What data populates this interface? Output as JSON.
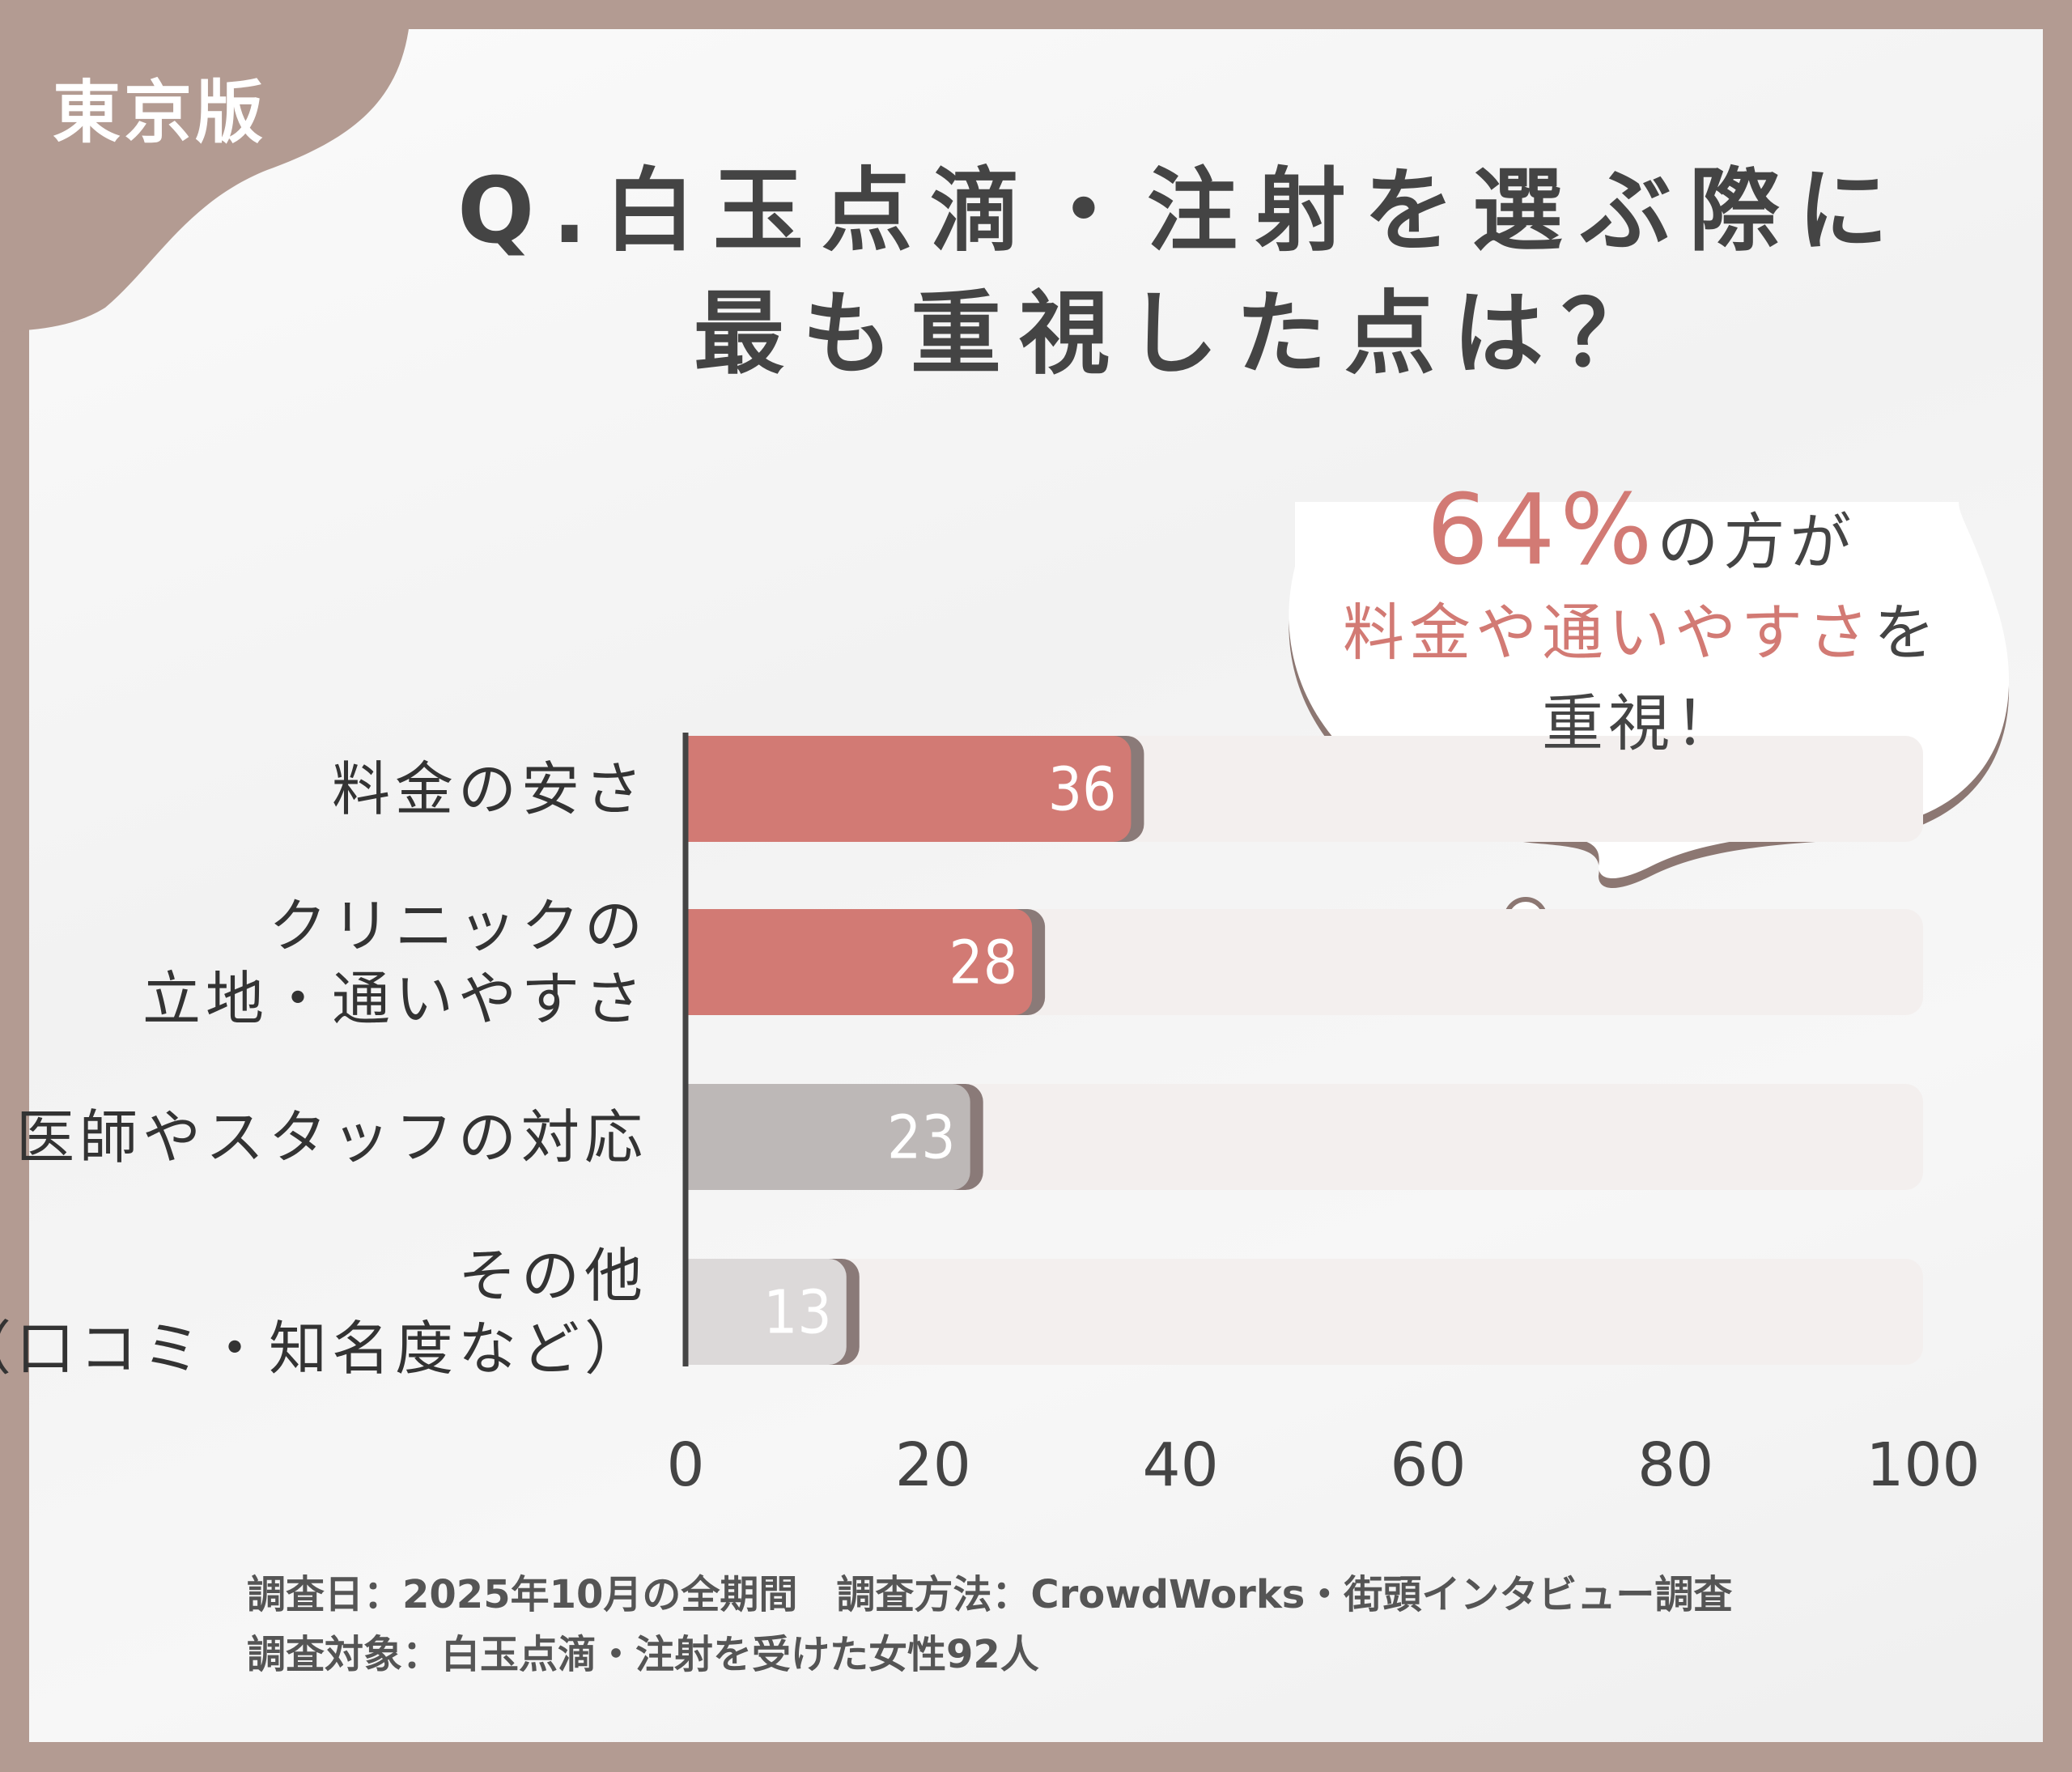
{
  "edition": "東京版",
  "title": {
    "line1": "Q.白玉点滴・注射を選ぶ際に",
    "line2": "最も重視した点は？"
  },
  "callout": {
    "percent": "64%",
    "after_percent": "の方が",
    "highlight": "料金や通いやすさ",
    "after_highlight": "を",
    "line3": "重視！"
  },
  "chart_data": {
    "type": "bar",
    "orientation": "horizontal",
    "categories": [
      [
        "料金の安さ"
      ],
      [
        "クリニックの",
        "立地・通いやすさ"
      ],
      [
        "医師やスタッフの対応"
      ],
      [
        "その他",
        "（口コミ・知名度など）"
      ]
    ],
    "values": [
      36,
      28,
      23,
      13
    ],
    "xlim": [
      0,
      100
    ],
    "xticks": [
      0,
      20,
      40,
      60,
      80,
      100
    ],
    "grid": false,
    "colors": [
      "#d27a74",
      "#d27a74",
      "#bdb8b7",
      "#dcd9d9"
    ],
    "track_color": "#f3efee"
  },
  "footer": {
    "line1": "調査日：2025年10月の全期間　調査方法：CrowdWorks・街頭インタビュー調査",
    "line2": "調査対象：白玉点滴・注射を受けた女性92人"
  }
}
